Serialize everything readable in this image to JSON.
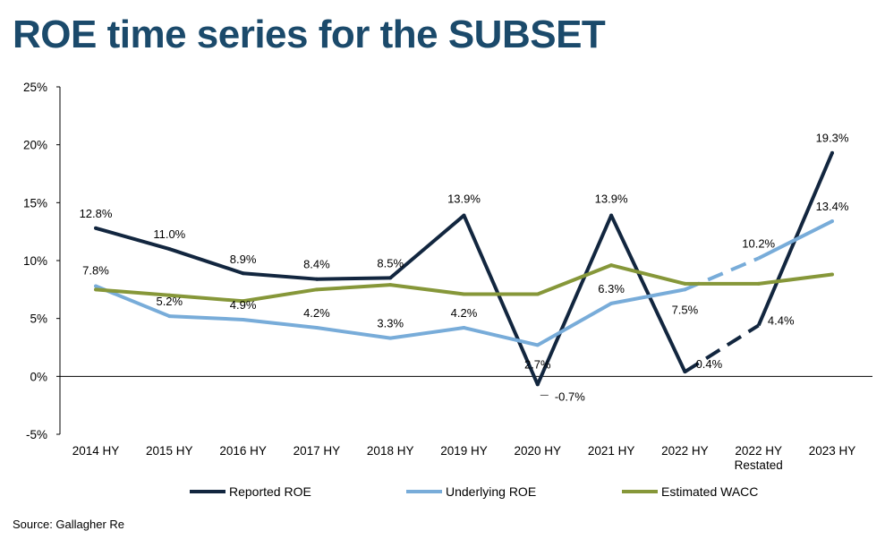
{
  "title": "ROE time series for the SUBSET",
  "source": "Source: Gallagher Re",
  "colors": {
    "reported": "#12263f",
    "underlying": "#78acd9",
    "wacc": "#869739",
    "axis": "#000000"
  },
  "chart_data": {
    "type": "line",
    "categories": [
      "2014 HY",
      "2015 HY",
      "2016 HY",
      "2017 HY",
      "2018 HY",
      "2019 HY",
      "2020 HY",
      "2021 HY",
      "2022 HY",
      "2022 HY\nRestated",
      "2023 HY"
    ],
    "ylim": [
      -5,
      25
    ],
    "yticks": [
      "-5%",
      "0%",
      "5%",
      "10%",
      "15%",
      "20%",
      "25%"
    ],
    "grid": false,
    "legend_position": "bottom",
    "series": [
      {
        "name": "Reported ROE",
        "values": [
          12.8,
          11.0,
          8.9,
          8.4,
          8.5,
          13.9,
          -0.7,
          13.9,
          0.4,
          4.4,
          19.3
        ],
        "labels": [
          "12.8%",
          "11.0%",
          "8.9%",
          "8.4%",
          "8.5%",
          "13.9%",
          "-0.7%",
          "13.9%",
          "0.4%",
          "4.4%",
          "19.3%"
        ],
        "dashed_segment": [
          8,
          9
        ]
      },
      {
        "name": "Underlying ROE",
        "values": [
          7.8,
          5.2,
          4.9,
          4.2,
          3.3,
          4.2,
          2.7,
          6.3,
          7.5,
          10.2,
          13.4
        ],
        "labels": [
          "7.8%",
          "5.2%",
          "4.9%",
          "4.2%",
          "3.3%",
          "4.2%",
          "2.7%",
          "6.3%",
          "7.5%",
          "10.2%",
          "13.4%"
        ],
        "dashed_segment": [
          8,
          9
        ]
      },
      {
        "name": "Estimated WACC",
        "values": [
          7.5,
          7.0,
          6.5,
          7.5,
          7.9,
          7.1,
          7.1,
          9.6,
          8.0,
          8.0,
          8.8
        ],
        "labels": []
      }
    ]
  }
}
